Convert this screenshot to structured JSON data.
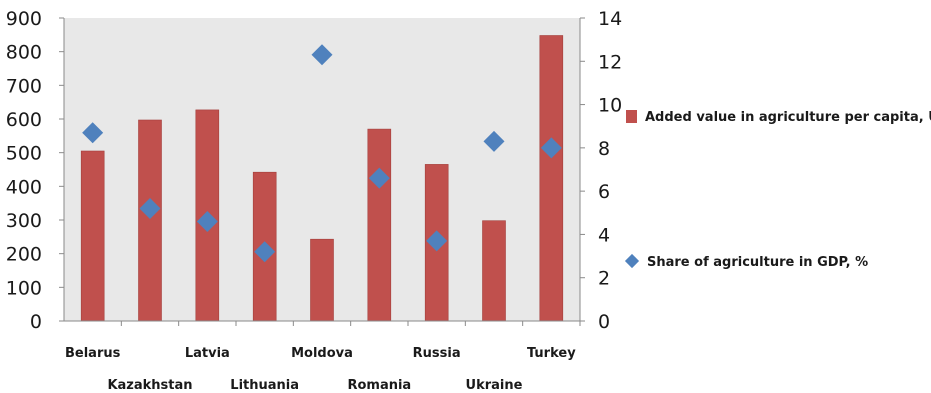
{
  "chart_data": {
    "type": "bar",
    "categories": [
      "Belarus",
      "Kazakhstan",
      "Latvia",
      "Lithuania",
      "Moldova",
      "Romania",
      "Russia",
      "Ukraine",
      "Turkey"
    ],
    "series": [
      {
        "name": "Added value in agriculture per capita, USD",
        "type": "bar",
        "axis": "left",
        "color": "#c0504d",
        "values": [
          505,
          597,
          627,
          442,
          243,
          570,
          465,
          298,
          848
        ]
      },
      {
        "name": "Share of agriculture in GDP, %",
        "type": "scatter",
        "axis": "right",
        "color": "#4f81bd",
        "values": [
          8.7,
          5.2,
          4.6,
          3.2,
          12.3,
          6.6,
          3.7,
          8.3,
          8.0
        ]
      }
    ],
    "y_left": {
      "min": 0,
      "max": 900,
      "ticks": [
        0,
        100,
        200,
        300,
        400,
        500,
        600,
        700,
        800,
        900
      ]
    },
    "y_right": {
      "min": 0,
      "max": 14,
      "ticks": [
        0,
        2,
        4,
        6,
        8,
        10,
        12,
        14
      ]
    },
    "grid": false,
    "legend_position": "right",
    "plot_background": "#e8e8e8"
  }
}
